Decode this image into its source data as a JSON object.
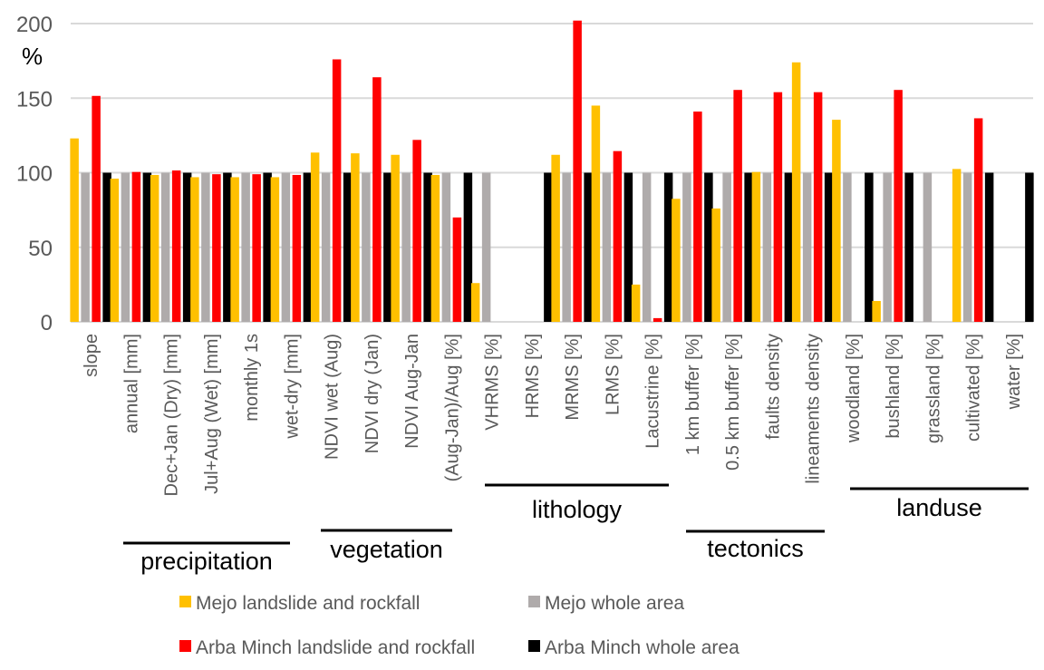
{
  "chart_data": {
    "type": "bar",
    "title": "",
    "xlabel": "",
    "ylabel": "%",
    "ylim": [
      0,
      200
    ],
    "yticks": [
      0,
      50,
      100,
      150,
      200
    ],
    "grid": true,
    "legend_position": "bottom",
    "categories": [
      "slope",
      "annual [mm]",
      "Dec+Jan (Dry) [mm]",
      "Jul+Aug (Wet) [mm]",
      "monthly 1s",
      "wet-dry [mm]",
      "NDVI wet (Aug)",
      "NDVI dry (Jan)",
      "NDVI Aug-Jan",
      "(Aug-Jan)/Aug   [%]",
      "VHRMS [%]",
      "HRMS [%]",
      "MRMS [%]",
      "LRMS [%]",
      "Lacustrine [%]",
      "1 km buffer [%]",
      "0.5 km buffer [%]",
      "faults density",
      "lineaments density",
      "woodland [%]",
      "bushland [%]",
      "grassland [%]",
      "cultivated [%]",
      "water [%]"
    ],
    "series": [
      {
        "name": "Mejo landslide and rockfall",
        "color": "#ffc000",
        "values": [
          123,
          96,
          98.5,
          97,
          97,
          97,
          113.5,
          113,
          112,
          98.5,
          26,
          0,
          112,
          145,
          25,
          82.5,
          76,
          100.5,
          174,
          135.5,
          14,
          0,
          102.5,
          0
        ]
      },
      {
        "name": "Mejo whole area",
        "color": "#afabab",
        "values": [
          100,
          100,
          100,
          100,
          100,
          100,
          100,
          100,
          100,
          100,
          100,
          0,
          100,
          100,
          100,
          100,
          100,
          100,
          100,
          100,
          100,
          100,
          100,
          0
        ]
      },
      {
        "name": "Arba Minch landslide and rockfall",
        "color": "#ff0000",
        "values": [
          151.5,
          100.5,
          101.5,
          99,
          99,
          98.5,
          176,
          164,
          122,
          70,
          0,
          0,
          202,
          114.5,
          2.5,
          141,
          155.5,
          154,
          154,
          0,
          155.5,
          0,
          136.5,
          0
        ]
      },
      {
        "name": "Arba Minch whole area",
        "color": "#000000",
        "values": [
          100,
          100,
          100,
          100,
          100,
          100,
          100,
          100,
          100,
          100,
          0,
          100,
          100,
          100,
          100,
          100,
          100,
          100,
          100,
          100,
          100,
          0,
          100,
          100
        ]
      }
    ],
    "groups": [
      {
        "label": "precipitation",
        "from": 1,
        "to": 5
      },
      {
        "label": "vegetation",
        "from": 6,
        "to": 8
      },
      {
        "label": "lithology",
        "from": 10,
        "to": 14
      },
      {
        "label": "tectonics",
        "from": 15,
        "to": 17
      },
      {
        "label": "landuse",
        "from": 19,
        "to": 23
      }
    ]
  }
}
